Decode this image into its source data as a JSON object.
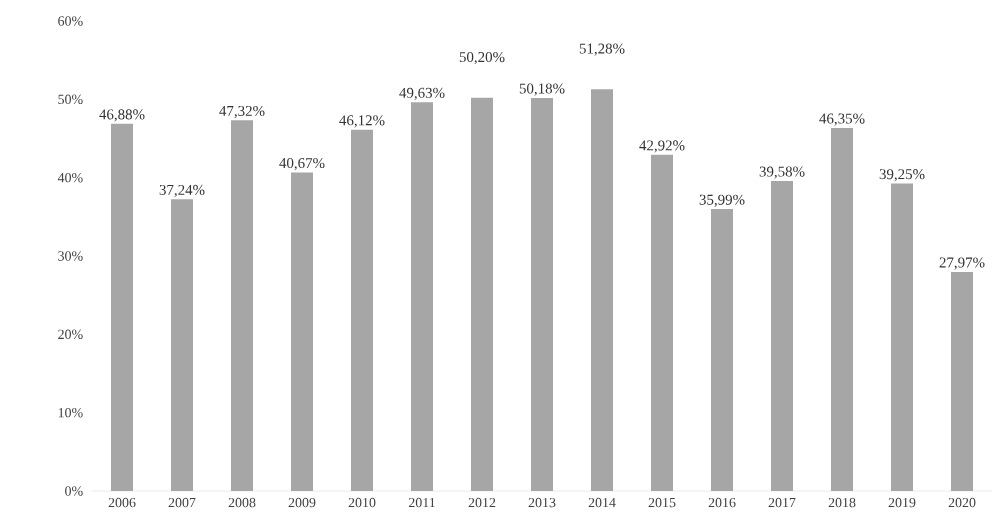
{
  "chart_data": {
    "type": "bar",
    "categories": [
      "2006",
      "2007",
      "2008",
      "2009",
      "2010",
      "2011",
      "2012",
      "2013",
      "2014",
      "2015",
      "2016",
      "2017",
      "2018",
      "2019",
      "2020"
    ],
    "values": [
      46.88,
      37.24,
      47.32,
      40.67,
      46.12,
      49.63,
      50.2,
      50.18,
      51.28,
      42.92,
      35.99,
      39.58,
      46.35,
      39.25,
      27.97
    ],
    "value_labels": [
      "46,88%",
      "37,24%",
      "47,32%",
      "40,67%",
      "46,12%",
      "49,63%",
      "50,20%",
      "50,18%",
      "51,28%",
      "42,92%",
      "35,99%",
      "39,58%",
      "46,35%",
      "39,25%",
      "27,97%"
    ],
    "color": "#a6a6a6",
    "ylim": [
      0,
      60
    ],
    "yticks": [
      {
        "value": 0,
        "label": "0%"
      },
      {
        "value": 10,
        "label": "10%"
      },
      {
        "value": 20,
        "label": "20%"
      },
      {
        "value": 30,
        "label": "30%"
      },
      {
        "value": 40,
        "label": "40%"
      },
      {
        "value": 50,
        "label": "50%"
      },
      {
        "value": 60,
        "label": "60%"
      }
    ],
    "grid": false
  }
}
